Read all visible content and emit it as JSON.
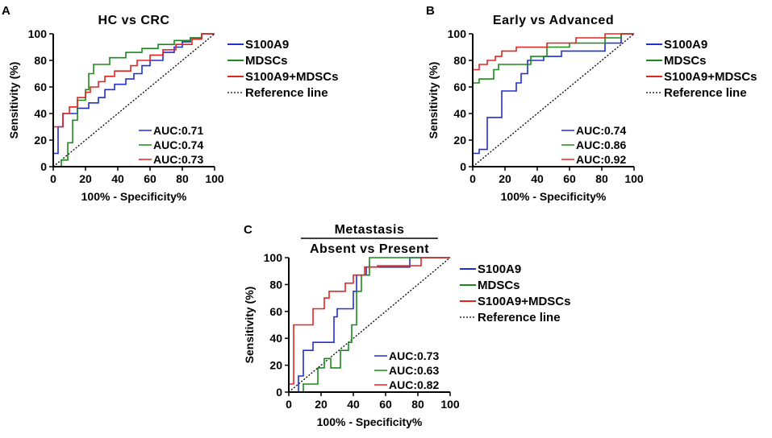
{
  "colors": {
    "s100a9": "#1f2fd6",
    "mdscs": "#1a8a1a",
    "combined": "#e8231e",
    "reference": "#000000"
  },
  "chart_data": [
    {
      "panel": "A",
      "type": "line",
      "title_lines": [
        "HC vs CRC"
      ],
      "xlabel": "100% - Specificity%",
      "ylabel": "Sensitivity (%)",
      "xlim": [
        0,
        100
      ],
      "ylim": [
        0,
        100
      ],
      "xticks": [
        "0",
        "20",
        "40",
        "60",
        "80",
        "100"
      ],
      "yticks": [
        "0",
        "20",
        "40",
        "60",
        "80",
        "100"
      ],
      "legend": [
        "S100A9",
        "MDSCs",
        "S100A9+MDSCs",
        "Reference line"
      ],
      "auc": [
        "AUC:0.71",
        "AUC:0.74",
        "AUC:0.73"
      ],
      "series": [
        {
          "name": "S100A9",
          "key": "s100a9",
          "points": [
            [
              0,
              0
            ],
            [
              0,
              10
            ],
            [
              3,
              10
            ],
            [
              3,
              30
            ],
            [
              6,
              30
            ],
            [
              6,
              40
            ],
            [
              15,
              40
            ],
            [
              15,
              44
            ],
            [
              22,
              44
            ],
            [
              22,
              48
            ],
            [
              28,
              48
            ],
            [
              28,
              52
            ],
            [
              32,
              52
            ],
            [
              32,
              58
            ],
            [
              38,
              58
            ],
            [
              38,
              62
            ],
            [
              45,
              62
            ],
            [
              45,
              66
            ],
            [
              50,
              66
            ],
            [
              50,
              70
            ],
            [
              55,
              70
            ],
            [
              55,
              76
            ],
            [
              60,
              76
            ],
            [
              60,
              80
            ],
            [
              68,
              80
            ],
            [
              68,
              86
            ],
            [
              75,
              86
            ],
            [
              75,
              90
            ],
            [
              80,
              90
            ],
            [
              80,
              94
            ],
            [
              85,
              94
            ],
            [
              85,
              97
            ],
            [
              92,
              97
            ],
            [
              92,
              100
            ],
            [
              100,
              100
            ]
          ]
        },
        {
          "name": "MDSCs",
          "key": "mdscs",
          "points": [
            [
              0,
              0
            ],
            [
              5,
              0
            ],
            [
              5,
              5
            ],
            [
              9,
              5
            ],
            [
              9,
              18
            ],
            [
              12,
              18
            ],
            [
              12,
              35
            ],
            [
              15,
              35
            ],
            [
              15,
              50
            ],
            [
              20,
              50
            ],
            [
              20,
              58
            ],
            [
              22,
              58
            ],
            [
              22,
              70
            ],
            [
              25,
              70
            ],
            [
              25,
              77
            ],
            [
              35,
              77
            ],
            [
              35,
              82
            ],
            [
              45,
              82
            ],
            [
              45,
              86
            ],
            [
              55,
              86
            ],
            [
              55,
              89
            ],
            [
              65,
              89
            ],
            [
              65,
              92
            ],
            [
              75,
              92
            ],
            [
              75,
              95
            ],
            [
              85,
              95
            ],
            [
              85,
              97
            ],
            [
              92,
              97
            ],
            [
              92,
              100
            ],
            [
              100,
              100
            ]
          ]
        },
        {
          "name": "S100A9+MDSCs",
          "key": "combined",
          "points": [
            [
              0,
              0
            ],
            [
              0,
              30
            ],
            [
              6,
              30
            ],
            [
              6,
              40
            ],
            [
              10,
              40
            ],
            [
              10,
              45
            ],
            [
              15,
              45
            ],
            [
              15,
              52
            ],
            [
              20,
              52
            ],
            [
              20,
              56
            ],
            [
              23,
              56
            ],
            [
              23,
              60
            ],
            [
              28,
              60
            ],
            [
              28,
              64
            ],
            [
              32,
              64
            ],
            [
              32,
              68
            ],
            [
              38,
              68
            ],
            [
              38,
              72
            ],
            [
              48,
              72
            ],
            [
              48,
              76
            ],
            [
              52,
              76
            ],
            [
              52,
              80
            ],
            [
              60,
              80
            ],
            [
              60,
              84
            ],
            [
              68,
              84
            ],
            [
              68,
              88
            ],
            [
              76,
              88
            ],
            [
              76,
              92
            ],
            [
              86,
              92
            ],
            [
              86,
              96
            ],
            [
              92,
              96
            ],
            [
              92,
              100
            ],
            [
              100,
              100
            ]
          ]
        }
      ]
    },
    {
      "panel": "B",
      "type": "line",
      "title_lines": [
        "Early vs Advanced"
      ],
      "xlabel": "100% - Specificity%",
      "ylabel": "Sensitivity (%)",
      "xlim": [
        0,
        100
      ],
      "ylim": [
        0,
        100
      ],
      "xticks": [
        "0",
        "20",
        "40",
        "60",
        "80",
        "100"
      ],
      "yticks": [
        "0",
        "20",
        "40",
        "60",
        "80",
        "100"
      ],
      "legend": [
        "S100A9",
        "MDSCs",
        "S100A9+MDSCs",
        "Reference line"
      ],
      "auc": [
        "AUC:0.74",
        "AUC:0.86",
        "AUC:0.92"
      ],
      "series": [
        {
          "name": "S100A9",
          "key": "s100a9",
          "points": [
            [
              0,
              0
            ],
            [
              0,
              10
            ],
            [
              4,
              10
            ],
            [
              4,
              13
            ],
            [
              9,
              13
            ],
            [
              9,
              37
            ],
            [
              18,
              37
            ],
            [
              18,
              57
            ],
            [
              27,
              57
            ],
            [
              27,
              63
            ],
            [
              30,
              63
            ],
            [
              30,
              70
            ],
            [
              34,
              70
            ],
            [
              34,
              80
            ],
            [
              44,
              80
            ],
            [
              44,
              83
            ],
            [
              55,
              83
            ],
            [
              55,
              87
            ],
            [
              82,
              87
            ],
            [
              82,
              93
            ],
            [
              92,
              93
            ],
            [
              92,
              100
            ],
            [
              100,
              100
            ]
          ]
        },
        {
          "name": "MDSCs",
          "key": "mdscs",
          "points": [
            [
              0,
              0
            ],
            [
              0,
              63
            ],
            [
              4,
              63
            ],
            [
              4,
              66
            ],
            [
              13,
              66
            ],
            [
              13,
              73
            ],
            [
              16,
              73
            ],
            [
              16,
              77
            ],
            [
              36,
              77
            ],
            [
              36,
              83
            ],
            [
              46,
              83
            ],
            [
              46,
              90
            ],
            [
              60,
              90
            ],
            [
              60,
              93
            ],
            [
              82,
              93
            ],
            [
              82,
              97
            ],
            [
              92,
              97
            ],
            [
              92,
              100
            ],
            [
              100,
              100
            ]
          ]
        },
        {
          "name": "S100A9+MDSCs",
          "key": "combined",
          "points": [
            [
              0,
              0
            ],
            [
              0,
              73
            ],
            [
              4,
              73
            ],
            [
              4,
              77
            ],
            [
              9,
              77
            ],
            [
              9,
              80
            ],
            [
              14,
              80
            ],
            [
              14,
              83
            ],
            [
              18,
              83
            ],
            [
              18,
              87
            ],
            [
              27,
              87
            ],
            [
              27,
              90
            ],
            [
              46,
              90
            ],
            [
              46,
              93
            ],
            [
              64,
              93
            ],
            [
              64,
              97
            ],
            [
              82,
              97
            ],
            [
              82,
              100
            ],
            [
              100,
              100
            ]
          ]
        }
      ]
    },
    {
      "panel": "C",
      "type": "line",
      "title_lines": [
        "Metastasis",
        "Absent vs Present"
      ],
      "xlabel": "100% - Specificity%",
      "ylabel": "Sensitivity (%)",
      "xlim": [
        0,
        100
      ],
      "ylim": [
        0,
        100
      ],
      "xticks": [
        "0",
        "20",
        "40",
        "60",
        "80",
        "100"
      ],
      "yticks": [
        "0",
        "20",
        "40",
        "60",
        "80",
        "100"
      ],
      "legend": [
        "S100A9",
        "MDSCs",
        "S100A9+MDSCs",
        "Reference line"
      ],
      "auc": [
        "AUC:0.73",
        "AUC:0.63",
        "AUC:0.82"
      ],
      "series": [
        {
          "name": "S100A9",
          "key": "s100a9",
          "points": [
            [
              0,
              0
            ],
            [
              6,
              0
            ],
            [
              6,
              12
            ],
            [
              9,
              12
            ],
            [
              9,
              31
            ],
            [
              15,
              31
            ],
            [
              15,
              37
            ],
            [
              28,
              37
            ],
            [
              28,
              56
            ],
            [
              30,
              56
            ],
            [
              30,
              62
            ],
            [
              40,
              62
            ],
            [
              40,
              75
            ],
            [
              42,
              75
            ],
            [
              42,
              87
            ],
            [
              48,
              87
            ],
            [
              48,
              93
            ],
            [
              75,
              93
            ],
            [
              75,
              100
            ],
            [
              100,
              100
            ]
          ]
        },
        {
          "name": "MDSCs",
          "key": "mdscs",
          "points": [
            [
              0,
              0
            ],
            [
              9,
              0
            ],
            [
              9,
              6
            ],
            [
              18,
              6
            ],
            [
              18,
              18
            ],
            [
              22,
              18
            ],
            [
              22,
              25
            ],
            [
              26,
              25
            ],
            [
              26,
              18
            ],
            [
              32,
              18
            ],
            [
              32,
              31
            ],
            [
              37,
              31
            ],
            [
              37,
              37
            ],
            [
              39,
              37
            ],
            [
              39,
              50
            ],
            [
              42,
              50
            ],
            [
              42,
              75
            ],
            [
              45,
              75
            ],
            [
              45,
              87
            ],
            [
              50,
              87
            ],
            [
              50,
              100
            ],
            [
              100,
              100
            ]
          ]
        },
        {
          "name": "S100A9+MDSCs",
          "key": "combined",
          "points": [
            [
              0,
              0
            ],
            [
              0,
              6
            ],
            [
              3,
              6
            ],
            [
              3,
              50
            ],
            [
              15,
              50
            ],
            [
              15,
              62
            ],
            [
              22,
              62
            ],
            [
              22,
              70
            ],
            [
              25,
              70
            ],
            [
              25,
              75
            ],
            [
              35,
              75
            ],
            [
              35,
              81
            ],
            [
              40,
              81
            ],
            [
              40,
              87
            ],
            [
              47,
              87
            ],
            [
              47,
              93
            ],
            [
              55,
              93
            ],
            [
              55,
              94
            ],
            [
              82,
              94
            ],
            [
              82,
              100
            ],
            [
              100,
              100
            ]
          ]
        }
      ]
    }
  ],
  "panel_labels": [
    "A",
    "B",
    "C"
  ]
}
